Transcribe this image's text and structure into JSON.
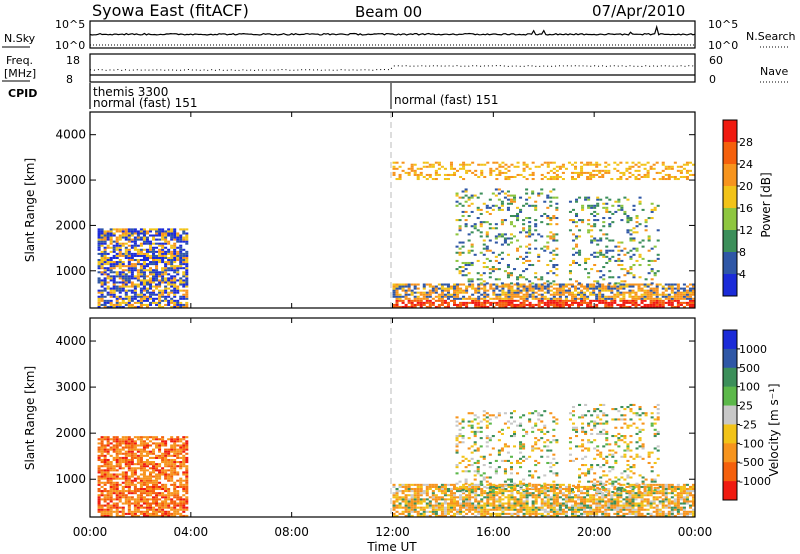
{
  "header": {
    "station": "Syowa East (fitACF)",
    "beam": "Beam 00",
    "date": "07/Apr/2010"
  },
  "noise_panel": {
    "left_label": "N.Sky",
    "right_label": "N.Search",
    "ticks_left": [
      "10^5",
      "10^0"
    ],
    "ticks_right": [
      "10^5",
      "10^0"
    ]
  },
  "freq_panel": {
    "left_label_1": "Freq.",
    "left_label_2": "[MHz]",
    "right_label": "Nave",
    "ticks_left": [
      "18",
      "8"
    ],
    "ticks_right": [
      "60",
      "0"
    ]
  },
  "cpid_panel": {
    "label": "CPID",
    "seg1_line1": "themis 3300",
    "seg1_line2": "normal (fast) 151",
    "seg2": "normal (fast) 151"
  },
  "time_axis": {
    "label": "Time UT",
    "ticks": [
      "00:00",
      "04:00",
      "08:00",
      "12:00",
      "16:00",
      "20:00",
      "00:00"
    ]
  },
  "power_colorbar": {
    "label": "Power [dB]",
    "ticks": [
      "28",
      "24",
      "20",
      "16",
      "12",
      "8",
      "4"
    ],
    "colors": [
      "#f01a10",
      "#f5600c",
      "#f7941d",
      "#f2c318",
      "#8ec63f",
      "#3c8f5a",
      "#2f57a6",
      "#1b2bd8"
    ]
  },
  "velocity_colorbar": {
    "label": "Velocity [m s⁻¹]",
    "ticks": [
      "1000",
      "500",
      "100",
      "25",
      "-25",
      "-100",
      "-500",
      "-1000"
    ],
    "colors": [
      "#1b2bd8",
      "#2f57a6",
      "#3c8f5a",
      "#5cb84a",
      "#c8c8c8",
      "#f2c318",
      "#f7941d",
      "#f5600c",
      "#f01a10"
    ]
  },
  "chart_data": [
    {
      "type": "heatmap",
      "title": "Power",
      "xlabel": "Time UT",
      "ylabel": "Slant Range [km]",
      "xlim": [
        "00:00",
        "24:00"
      ],
      "ylim": [
        180,
        4500
      ],
      "yticks": [
        "1000",
        "2000",
        "3000",
        "4000"
      ],
      "xticks": [
        "00:00",
        "04:00",
        "08:00",
        "12:00",
        "16:00",
        "20:00",
        "00:00"
      ],
      "colorbar": "Power [dB]",
      "regions": [
        {
          "t0": 0.3,
          "t1": 3.8,
          "r0": 180,
          "r1": 1900,
          "level": "mixed blue/orange",
          "note": "banded echoes"
        },
        {
          "t0": 12.0,
          "t1": 24.0,
          "r0": 180,
          "r1": 700,
          "level": "high (orange/red)"
        },
        {
          "t0": 14.5,
          "t1": 18.5,
          "r0": 700,
          "r1": 2800,
          "level": "mixed green/blue"
        },
        {
          "t0": 19.0,
          "t1": 22.5,
          "r0": 700,
          "r1": 2600,
          "level": "mixed green/orange"
        },
        {
          "t0": 12.0,
          "t1": 24.0,
          "r0": 3000,
          "r1": 3400,
          "level": "sparse yellow/orange"
        }
      ]
    },
    {
      "type": "heatmap",
      "title": "Velocity",
      "xlabel": "Time UT",
      "ylabel": "Slant Range [km]",
      "xlim": [
        "00:00",
        "24:00"
      ],
      "ylim": [
        180,
        4500
      ],
      "yticks": [
        "1000",
        "2000",
        "3000",
        "4000"
      ],
      "xticks": [
        "00:00",
        "04:00",
        "08:00",
        "12:00",
        "16:00",
        "20:00",
        "00:00"
      ],
      "colorbar": "Velocity [m s⁻¹]",
      "regions": [
        {
          "t0": 0.3,
          "t1": 3.8,
          "r0": 180,
          "r1": 1900,
          "level": "orange/red (negative)"
        },
        {
          "t0": 12.0,
          "t1": 24.0,
          "r0": 180,
          "r1": 900,
          "level": "orange/yellow"
        },
        {
          "t0": 14.5,
          "t1": 18.5,
          "r0": 700,
          "r1": 2500,
          "level": "mixed orange/green/grey"
        },
        {
          "t0": 19.0,
          "t1": 22.5,
          "r0": 700,
          "r1": 2600,
          "level": "mixed green/orange/grey"
        }
      ]
    }
  ]
}
